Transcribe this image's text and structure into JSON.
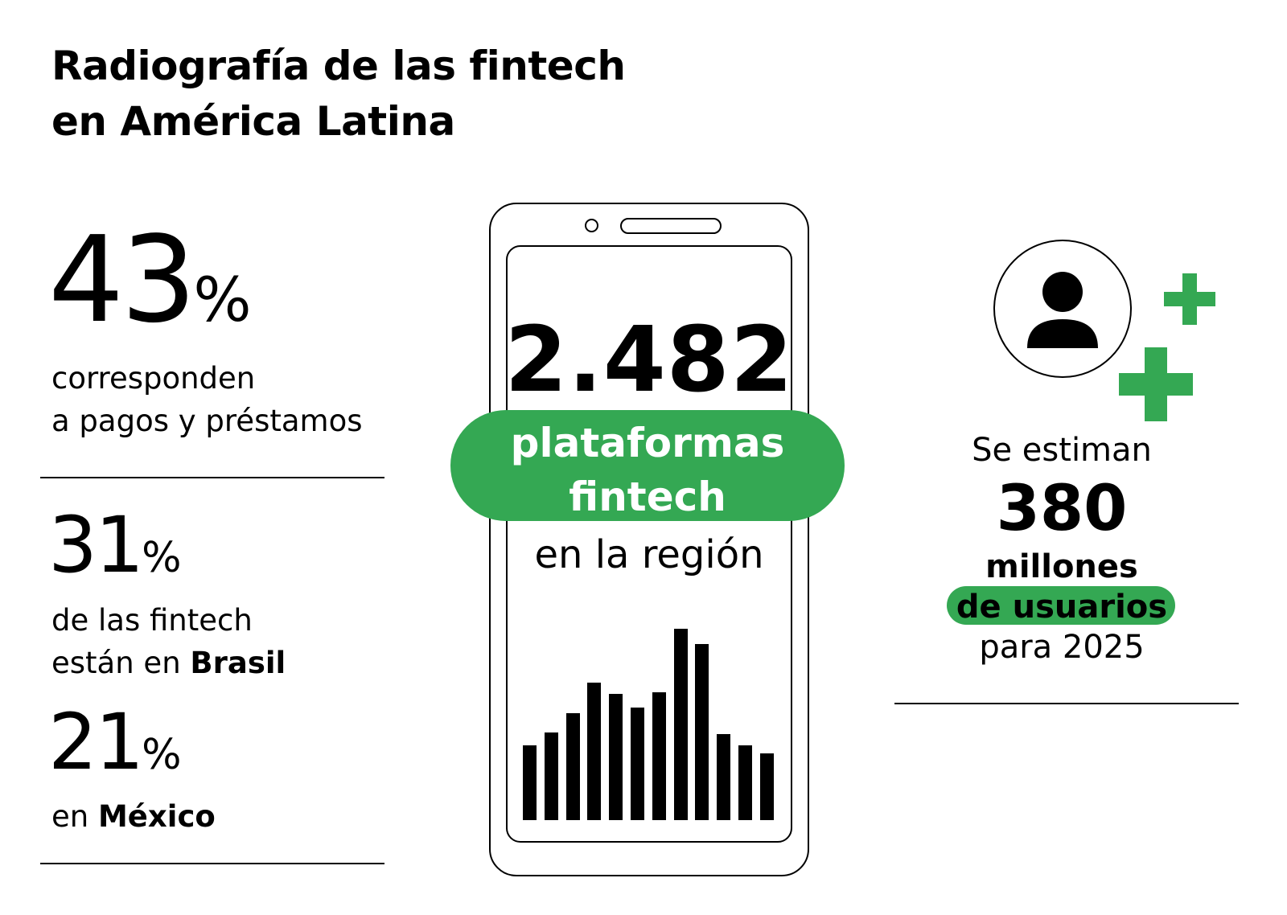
{
  "title": {
    "line1": "Radiografía de las fintech",
    "line2": "en América Latina"
  },
  "left": {
    "stat1": {
      "number": "43",
      "percent": "%",
      "desc_line1": "corresponden",
      "desc_line2": "a pagos y préstamos"
    },
    "stat2": {
      "number": "31",
      "percent": "%",
      "desc_line1": "de las fintech",
      "desc_line2_prefix": "están en ",
      "desc_line2_bold": "Brasil"
    },
    "stat3": {
      "number": "21",
      "percent": "%",
      "desc_prefix": "en ",
      "desc_bold": "México"
    }
  },
  "center": {
    "number": "2.482",
    "pill_line1": "plataformas",
    "pill_line2": "fintech",
    "subtitle": "en la región",
    "bar_levels": [
      0.39,
      0.46,
      0.56,
      0.72,
      0.66,
      0.59,
      0.67,
      1.0,
      0.92,
      0.45,
      0.39,
      0.35
    ]
  },
  "right": {
    "line1": "Se estiman",
    "number": "380",
    "line3": "millones",
    "highlight": "de usuarios",
    "line5": "para 2025",
    "icons": [
      "user-icon",
      "plus-icon",
      "plus-icon"
    ]
  },
  "colors": {
    "accent": "#34a853",
    "text": "#000000",
    "background": "#ffffff"
  }
}
